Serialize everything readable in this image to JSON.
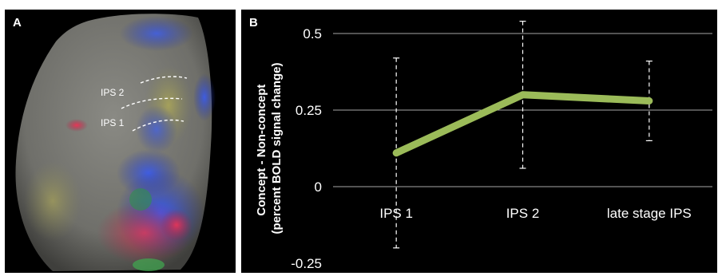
{
  "panel_a": {
    "letter": "A",
    "labels": [
      "IPS 2",
      "IPS 1"
    ]
  },
  "panel_b": {
    "letter": "B"
  },
  "chart_data": {
    "type": "line",
    "categories": [
      "IPS 1",
      "IPS 2",
      "late stage IPS"
    ],
    "series": [
      {
        "values": [
          0.11,
          0.3,
          0.28
        ],
        "error_low": [
          -0.2,
          0.06,
          0.15
        ],
        "error_high": [
          0.42,
          0.54,
          0.41
        ],
        "color": "#9bbb59"
      }
    ],
    "ylabel": "Concept - Non-concept (percent BOLD signal change)",
    "ylabel_lines": [
      "Concept - Non-concept",
      "(percent BOLD signal change)"
    ],
    "yticks": [
      "0.5",
      "0.25",
      "0",
      "-0.25"
    ],
    "ytick_values": [
      0.5,
      0.25,
      0,
      -0.25
    ],
    "ylim": [
      -0.25,
      0.5
    ],
    "grid": true,
    "colors": {
      "background": "#000000",
      "text": "#ffffff",
      "gridline": "#a6a6a6",
      "line": "#9bbb59"
    }
  }
}
